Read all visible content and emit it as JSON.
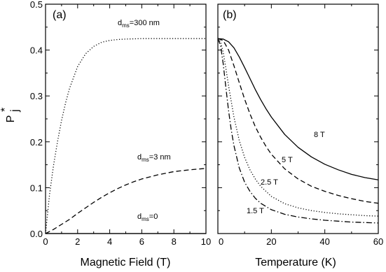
{
  "chart_data": [
    {
      "type": "line",
      "panel_label": "(a)",
      "xlabel": "Magnetic Field (T)",
      "ylabel_main": "P",
      "ylabel_sup": "*",
      "ylabel_sub": "j",
      "xlim": [
        0,
        10
      ],
      "ylim": [
        0.0,
        0.5
      ],
      "xticks": [
        0,
        2,
        4,
        6,
        8,
        10
      ],
      "yticks": [
        "0.0",
        "0.1",
        "0.2",
        "0.3",
        "0.4",
        "0.5"
      ],
      "grid": false,
      "series": [
        {
          "style": "dotted",
          "annotation": {
            "main": "d",
            "sub": "ms",
            "rest": "=300 nm"
          },
          "x": [
            0,
            0.25,
            0.5,
            0.75,
            1.0,
            1.25,
            1.5,
            2.0,
            2.5,
            3.0,
            3.5,
            4.0,
            4.5,
            5.0,
            6.0,
            7.0,
            8.0,
            9.0,
            10.0
          ],
          "y": [
            0.0,
            0.085,
            0.149,
            0.201,
            0.247,
            0.285,
            0.317,
            0.364,
            0.392,
            0.408,
            0.417,
            0.421,
            0.423,
            0.424,
            0.425,
            0.425,
            0.425,
            0.425,
            0.425
          ]
        },
        {
          "style": "dashed",
          "annotation": {
            "main": "d",
            "sub": "ms",
            "rest": "=3 nm"
          },
          "x": [
            0,
            0.5,
            1,
            1.5,
            2,
            2.5,
            3,
            3.5,
            4,
            4.5,
            5,
            5.5,
            6,
            7,
            8,
            9,
            10
          ],
          "y": [
            0.0,
            0.009,
            0.02,
            0.031,
            0.044,
            0.056,
            0.068,
            0.079,
            0.089,
            0.098,
            0.106,
            0.113,
            0.119,
            0.128,
            0.135,
            0.139,
            0.142
          ]
        },
        {
          "style": "solid",
          "annotation": {
            "main": "d",
            "sub": "ms",
            "rest": "=0"
          },
          "x": [
            0,
            10
          ],
          "y": [
            0.0,
            0.0
          ]
        }
      ]
    },
    {
      "type": "line",
      "panel_label": "(b)",
      "xlabel": "Temperature (K)",
      "xlim": [
        0,
        60
      ],
      "ylim": [
        0.0,
        0.5
      ],
      "xticks": [
        0,
        20,
        40,
        60
      ],
      "grid": false,
      "series": [
        {
          "style": "solid",
          "label": "8 T",
          "x": [
            0,
            2,
            4,
            6,
            8,
            10,
            12,
            14,
            16,
            18,
            20,
            25,
            30,
            35,
            40,
            45,
            50,
            55,
            60
          ],
          "y": [
            0.425,
            0.424,
            0.418,
            0.405,
            0.385,
            0.362,
            0.338,
            0.314,
            0.292,
            0.272,
            0.254,
            0.216,
            0.188,
            0.167,
            0.151,
            0.139,
            0.129,
            0.122,
            0.117
          ]
        },
        {
          "style": "dashed",
          "label": "5 T",
          "x": [
            0,
            2,
            4,
            6,
            8,
            10,
            12,
            14,
            16,
            18,
            20,
            25,
            30,
            35,
            40,
            45,
            50,
            55,
            60
          ],
          "y": [
            0.425,
            0.421,
            0.4,
            0.366,
            0.329,
            0.293,
            0.261,
            0.233,
            0.21,
            0.19,
            0.173,
            0.141,
            0.119,
            0.103,
            0.092,
            0.083,
            0.076,
            0.07,
            0.066
          ]
        },
        {
          "style": "dotted",
          "label": "2.5 T",
          "x": [
            0,
            1,
            2,
            3,
            4,
            6,
            8,
            10,
            12,
            14,
            16,
            20,
            25,
            30,
            35,
            40,
            45,
            50,
            55,
            60
          ],
          "y": [
            0.425,
            0.418,
            0.395,
            0.36,
            0.322,
            0.254,
            0.203,
            0.166,
            0.139,
            0.119,
            0.103,
            0.081,
            0.065,
            0.056,
            0.05,
            0.046,
            0.043,
            0.041,
            0.039,
            0.038
          ]
        },
        {
          "style": "dashdot",
          "label": "1.5 T",
          "x": [
            0,
            1,
            2,
            3,
            4,
            5,
            6,
            8,
            10,
            12,
            14,
            16,
            20,
            25,
            30,
            35,
            40,
            45,
            50,
            55,
            60
          ],
          "y": [
            0.425,
            0.41,
            0.37,
            0.318,
            0.268,
            0.226,
            0.192,
            0.143,
            0.112,
            0.092,
            0.077,
            0.066,
            0.052,
            0.042,
            0.036,
            0.032,
            0.029,
            0.027,
            0.025,
            0.024,
            0.023
          ]
        }
      ]
    }
  ]
}
